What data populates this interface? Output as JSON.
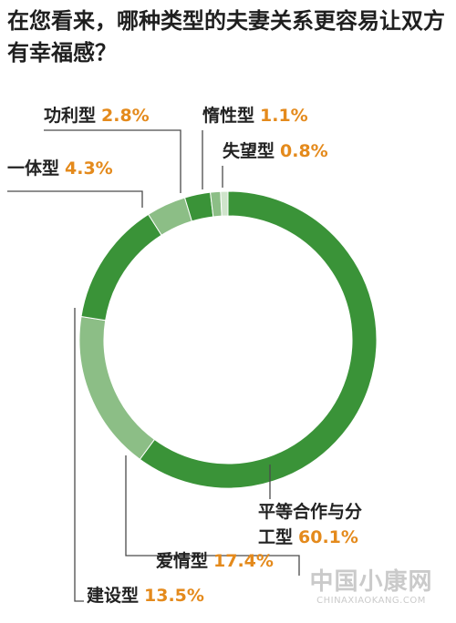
{
  "title": "在您看来，哪种类型的夫妻关系更容易让双方有幸福感？",
  "chart_data": {
    "type": "pie",
    "slices": [
      {
        "name": "平等合作与分工型",
        "name_lines": [
          "平等合作与分",
          "工型"
        ],
        "value": 60.1,
        "label": "60.1%",
        "color": "#3a9338"
      },
      {
        "name": "爱情型",
        "value": 17.4,
        "label": "17.4%",
        "color": "#8cbe86"
      },
      {
        "name": "建设型",
        "value": 13.5,
        "label": "13.5%",
        "color": "#3a9338"
      },
      {
        "name": "一体型",
        "value": 4.3,
        "label": "4.3%",
        "color": "#8cbe86"
      },
      {
        "name": "功利型",
        "value": 2.8,
        "label": "2.8%",
        "color": "#3a9338"
      },
      {
        "name": "惰性型",
        "value": 1.1,
        "label": "1.1%",
        "color": "#8cbe86"
      },
      {
        "name": "失望型",
        "value": 0.8,
        "label": "0.8%",
        "color": "#cfe4cb"
      }
    ],
    "start_angle_deg": 0,
    "direction": "clockwise",
    "donut": true
  },
  "watermark": {
    "cn": "中国小康网",
    "en": "CHINAXIAOKANG.COM"
  }
}
